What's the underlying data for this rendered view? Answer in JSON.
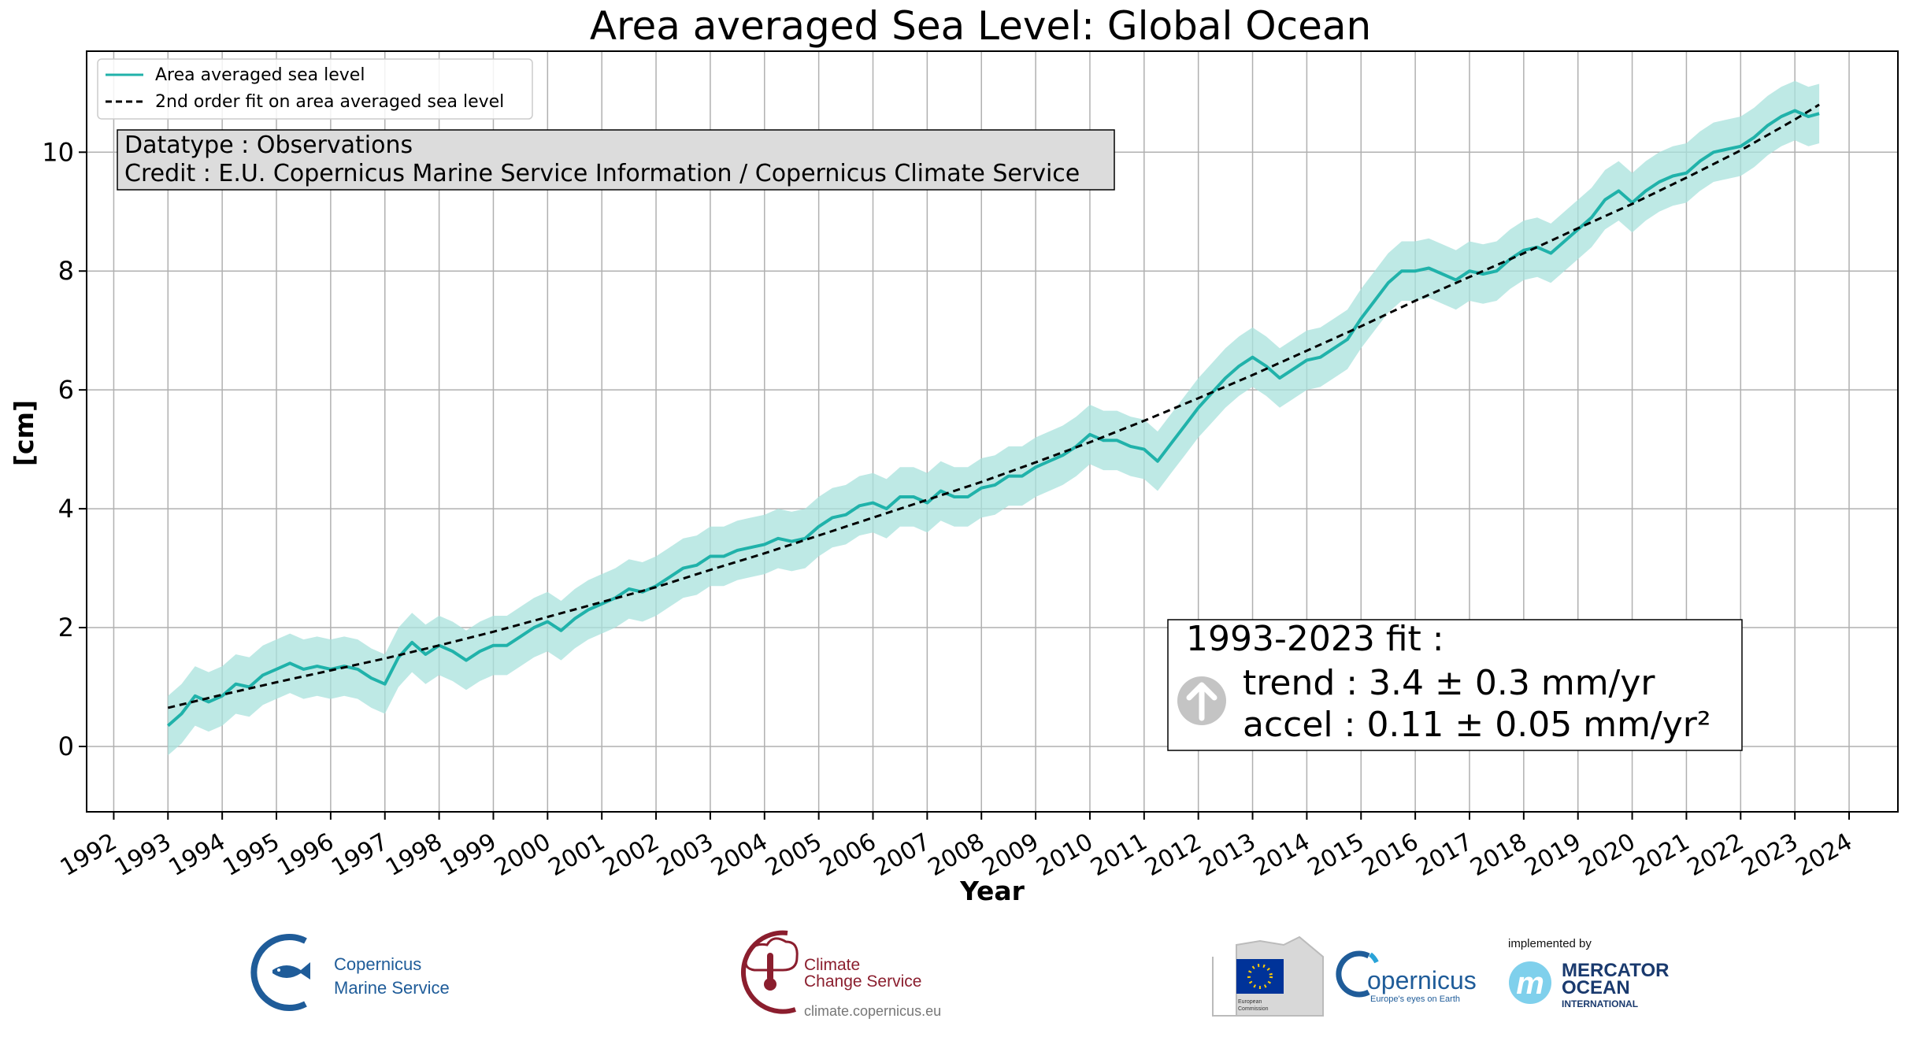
{
  "chart_data": {
    "type": "line",
    "title": "Area averaged Sea Level: Global Ocean",
    "xlabel": "Year",
    "ylabel": "[cm]",
    "xlim": [
      1991.5,
      2024.9
    ],
    "ylim": [
      -1.1,
      11.7
    ],
    "x_ticks": [
      1992,
      1993,
      1994,
      1995,
      1996,
      1997,
      1998,
      1999,
      2000,
      2001,
      2002,
      2003,
      2004,
      2005,
      2006,
      2007,
      2008,
      2009,
      2010,
      2011,
      2012,
      2013,
      2014,
      2015,
      2016,
      2017,
      2018,
      2019,
      2020,
      2021,
      2022,
      2023,
      2024
    ],
    "y_ticks": [
      0,
      2,
      4,
      6,
      8,
      10
    ],
    "grid": true,
    "legend_position": "upper-left",
    "colors": {
      "series": "#20b2aa",
      "band": "#a8e1dc",
      "fit": "#000000",
      "grid": "#b0b0b0"
    },
    "series": [
      {
        "name": "Area averaged sea level",
        "style": "solid",
        "x": [
          1993.0,
          1993.25,
          1993.5,
          1993.75,
          1994.0,
          1994.25,
          1994.5,
          1994.75,
          1995.0,
          1995.25,
          1995.5,
          1995.75,
          1996.0,
          1996.25,
          1996.5,
          1996.75,
          1997.0,
          1997.25,
          1997.5,
          1997.75,
          1998.0,
          1998.25,
          1998.5,
          1998.75,
          1999.0,
          1999.25,
          1999.5,
          1999.75,
          2000.0,
          2000.25,
          2000.5,
          2000.75,
          2001.0,
          2001.25,
          2001.5,
          2001.75,
          2002.0,
          2002.25,
          2002.5,
          2002.75,
          2003.0,
          2003.25,
          2003.5,
          2003.75,
          2004.0,
          2004.25,
          2004.5,
          2004.75,
          2005.0,
          2005.25,
          2005.5,
          2005.75,
          2006.0,
          2006.25,
          2006.5,
          2006.75,
          2007.0,
          2007.25,
          2007.5,
          2007.75,
          2008.0,
          2008.25,
          2008.5,
          2008.75,
          2009.0,
          2009.25,
          2009.5,
          2009.75,
          2010.0,
          2010.25,
          2010.5,
          2010.75,
          2011.0,
          2011.25,
          2011.5,
          2011.75,
          2012.0,
          2012.25,
          2012.5,
          2012.75,
          2013.0,
          2013.25,
          2013.5,
          2013.75,
          2014.0,
          2014.25,
          2014.5,
          2014.75,
          2015.0,
          2015.25,
          2015.5,
          2015.75,
          2016.0,
          2016.25,
          2016.5,
          2016.75,
          2017.0,
          2017.25,
          2017.5,
          2017.75,
          2018.0,
          2018.25,
          2018.5,
          2018.75,
          2019.0,
          2019.25,
          2019.5,
          2019.75,
          2020.0,
          2020.25,
          2020.5,
          2020.75,
          2021.0,
          2021.25,
          2021.5,
          2021.75,
          2022.0,
          2022.25,
          2022.5,
          2022.75,
          2023.0,
          2023.25,
          2023.45
        ],
        "values": [
          0.35,
          0.55,
          0.85,
          0.75,
          0.85,
          1.05,
          1.0,
          1.2,
          1.3,
          1.4,
          1.3,
          1.35,
          1.3,
          1.35,
          1.3,
          1.15,
          1.05,
          1.5,
          1.75,
          1.55,
          1.7,
          1.6,
          1.45,
          1.6,
          1.7,
          1.7,
          1.85,
          2.0,
          2.1,
          1.95,
          2.15,
          2.3,
          2.4,
          2.5,
          2.65,
          2.6,
          2.7,
          2.85,
          3.0,
          3.05,
          3.2,
          3.2,
          3.3,
          3.35,
          3.4,
          3.5,
          3.45,
          3.5,
          3.7,
          3.85,
          3.9,
          4.05,
          4.1,
          4.0,
          4.2,
          4.2,
          4.1,
          4.3,
          4.2,
          4.2,
          4.35,
          4.4,
          4.55,
          4.55,
          4.7,
          4.8,
          4.9,
          5.05,
          5.25,
          5.15,
          5.15,
          5.05,
          5.0,
          4.8,
          5.1,
          5.4,
          5.7,
          5.95,
          6.2,
          6.4,
          6.55,
          6.4,
          6.2,
          6.35,
          6.5,
          6.55,
          6.7,
          6.85,
          7.2,
          7.5,
          7.8,
          8.0,
          8.0,
          8.05,
          7.95,
          7.85,
          8.0,
          7.95,
          8.0,
          8.2,
          8.35,
          8.4,
          8.3,
          8.5,
          8.7,
          8.9,
          9.2,
          9.35,
          9.15,
          9.35,
          9.5,
          9.6,
          9.65,
          9.85,
          10.0,
          10.05,
          10.1,
          10.25,
          10.45,
          10.6,
          10.7,
          10.6,
          10.65
        ]
      },
      {
        "name": "2nd order fit on area averaged sea level",
        "style": "dashed",
        "x": [
          1993.0,
          1994.0,
          1995.0,
          1996.0,
          1997.0,
          1998.0,
          1999.0,
          2000.0,
          2001.0,
          2002.0,
          2003.0,
          2004.0,
          2005.0,
          2006.0,
          2007.0,
          2008.0,
          2009.0,
          2010.0,
          2011.0,
          2012.0,
          2013.0,
          2014.0,
          2015.0,
          2016.0,
          2017.0,
          2018.0,
          2019.0,
          2020.0,
          2021.0,
          2022.0,
          2023.0,
          2023.45
        ],
        "values": [
          0.65,
          0.87,
          1.08,
          1.28,
          1.48,
          1.7,
          1.93,
          2.18,
          2.43,
          2.68,
          2.97,
          3.25,
          3.55,
          3.85,
          4.15,
          4.45,
          4.78,
          5.12,
          5.48,
          5.86,
          6.25,
          6.66,
          7.07,
          7.5,
          7.9,
          8.3,
          8.72,
          9.13,
          9.57,
          10.03,
          10.55,
          10.8
        ]
      }
    ],
    "uncertainty_half_width": 0.5,
    "info_box": {
      "line1": "Datatype : Observations",
      "line2": "Credit : E.U. Copernicus Marine Service Information / Copernicus Climate Service"
    },
    "fit_box": {
      "line1": "1993-2023 fit :",
      "line2": "trend : 3.4 ± 0.3 mm/yr",
      "line3": "accel : 0.11 ± 0.05 mm/yr²",
      "icon": "up-arrow-circle-icon"
    }
  },
  "logos": {
    "copernicus_marine": {
      "line1": "Copernicus",
      "line2": "Marine Service",
      "icon": "fish-icon"
    },
    "climate_change": {
      "line1": "Climate",
      "line2": "Change Service",
      "url_text": "climate.copernicus.eu",
      "icon": "thermometer-icon"
    },
    "european_commission": {
      "line1": "European",
      "line2": "Commission",
      "icon": "eu-flag-icon"
    },
    "copernicus": {
      "name": "opernicus",
      "tagline": "Europe's eyes on Earth",
      "icon": "copernicus-c-icon"
    },
    "mercator": {
      "implemented_by": "implemented by",
      "line1": "MERCATOR",
      "line2": "OCEAN",
      "line3": "INTERNATIONAL",
      "icon": "mercator-m-icon"
    }
  }
}
